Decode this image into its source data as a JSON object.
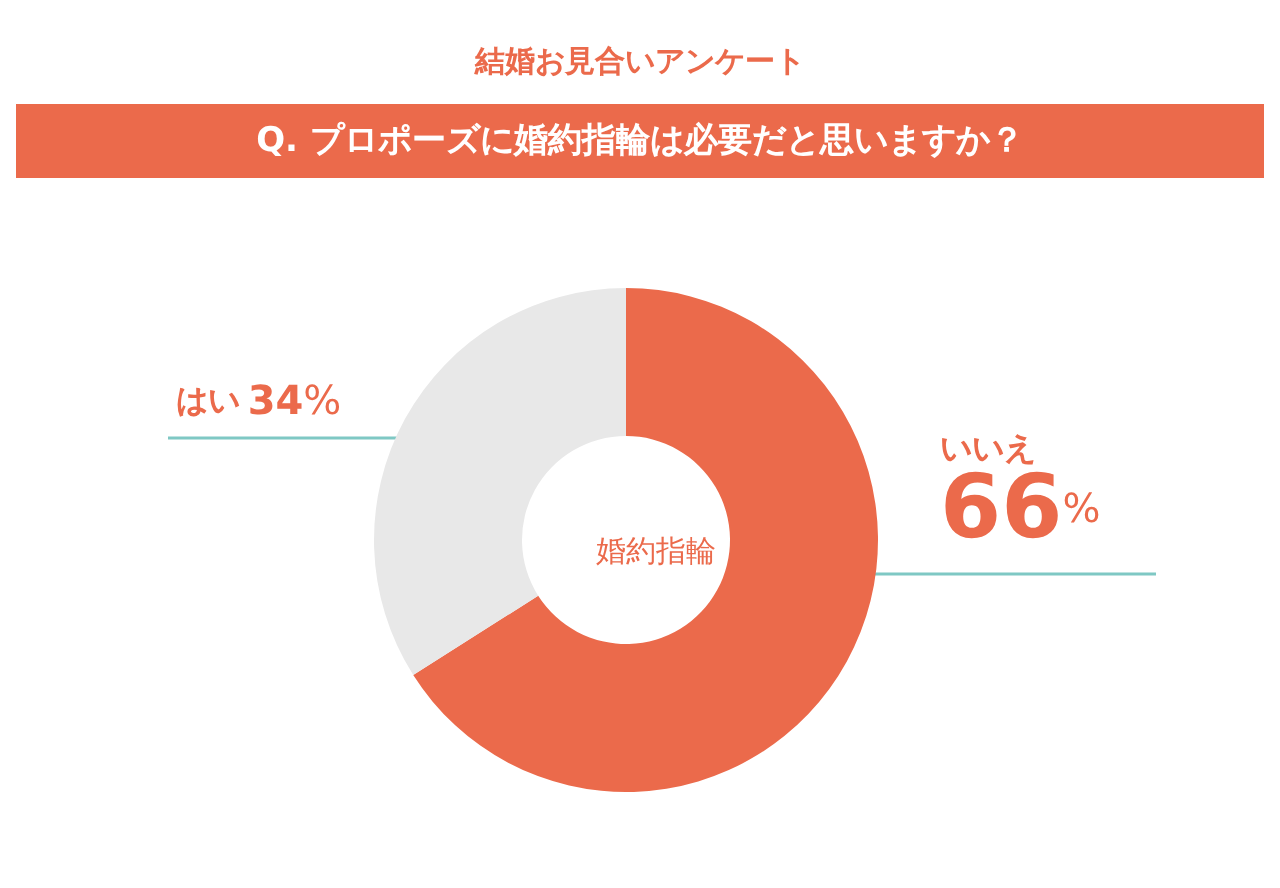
{
  "chart_data": {
    "type": "donut",
    "title": "結婚お見合いアンケート",
    "subtitle": "Q. プロポーズに婚約指輪は必要だと思いますか？",
    "categories": [
      "いいえ",
      "はい"
    ],
    "values": [
      66,
      34
    ],
    "colors": [
      "#eb6a4b",
      "#e8e8e8"
    ],
    "annotations": [
      "婚約指輪"
    ],
    "value_labels": [
      "66%",
      "34%"
    ]
  }
}
